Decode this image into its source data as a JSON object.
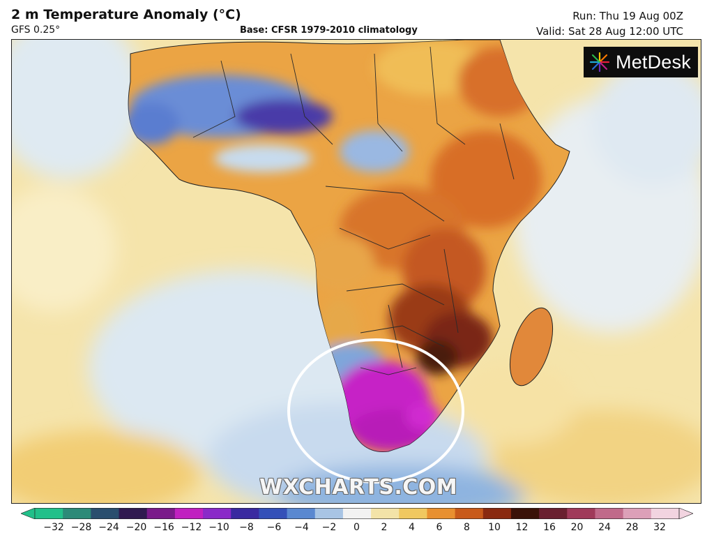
{
  "header": {
    "title": "2 m Temperature Anomaly (°C)",
    "model": "GFS 0.25°",
    "base": "Base: CFSR 1979-2010 climatology",
    "run": "Run: Thu 19 Aug 00Z",
    "valid": "Valid: Sat 28 Aug 12:00 UTC"
  },
  "logo": {
    "text": "MetDesk",
    "icon": "metdesk-burst-icon"
  },
  "watermark": "WXCHARTS.COM",
  "map": {
    "region": "Africa",
    "highlight": "white ellipse around southern Africa",
    "colors": {
      "ocean_warm": "#f3dca0",
      "ocean_cool": "#dbe6ef",
      "land_warm": "#e89a3c",
      "land_hot": "#b84a1a",
      "land_very_hot": "#6e2214",
      "cold_blue": "#5c7fcf",
      "very_cold": "#3e2a8a",
      "extreme_cold": "#cc22cc"
    }
  },
  "colorbar": {
    "ticks": [
      "−32",
      "−28",
      "−24",
      "−20",
      "−16",
      "−12",
      "−10",
      "−8",
      "−6",
      "−4",
      "−2",
      "0",
      "2",
      "4",
      "6",
      "8",
      "10",
      "12",
      "16",
      "20",
      "24",
      "28",
      "32"
    ],
    "colors": [
      "#22c08a",
      "#2c8a78",
      "#2a4e6e",
      "#301a50",
      "#7a1a8a",
      "#c020c0",
      "#8a2ac8",
      "#3a2aa0",
      "#3450b8",
      "#5a88d0",
      "#a8c4e4",
      "#f2f2f2",
      "#f3e3a8",
      "#f0c860",
      "#e89030",
      "#c85a1a",
      "#8a2a10",
      "#3a1208",
      "#6a2030",
      "#a03a5a",
      "#c06a8a",
      "#dca0b8",
      "#f2d4e0"
    ]
  }
}
